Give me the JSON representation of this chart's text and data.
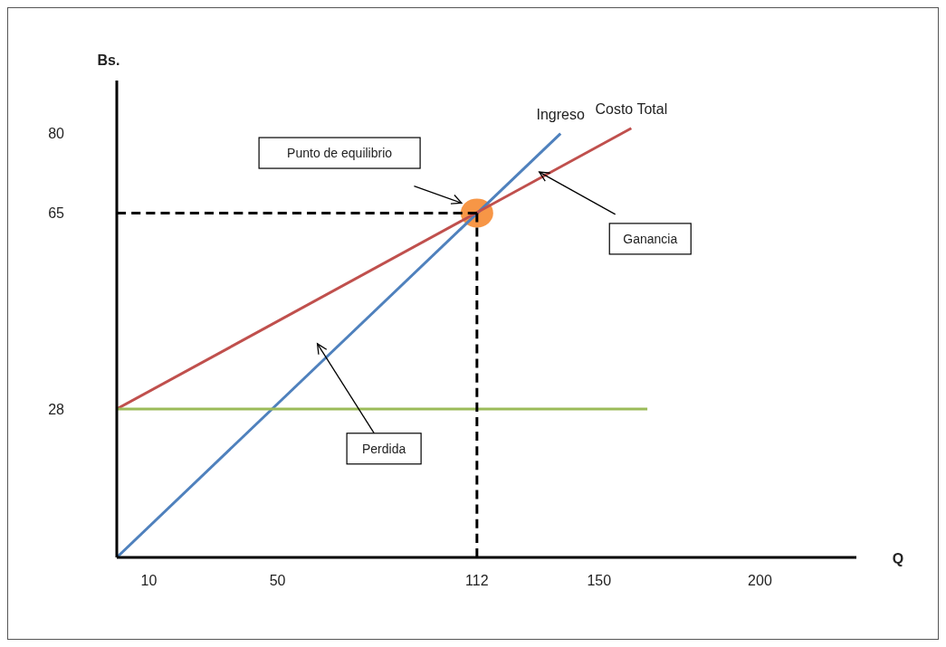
{
  "chart_data": {
    "type": "line",
    "xlabel": "Q",
    "ylabel": "Bs.",
    "xlim": [
      0,
      230
    ],
    "ylim": [
      0,
      90
    ],
    "xticks": [
      10,
      50,
      112,
      150,
      200
    ],
    "yticks": [
      28,
      65,
      80
    ],
    "grid": false,
    "legend": false,
    "marker": "none",
    "series": [
      {
        "name": "Ingreso",
        "color": "#4f81bd",
        "x": [
          0,
          138
        ],
        "values": [
          0,
          80
        ]
      },
      {
        "name": "Costo Total",
        "color": "#c0504d",
        "x": [
          0,
          160
        ],
        "values": [
          28,
          81
        ]
      },
      {
        "color": "#9bbb59",
        "x": [
          0,
          165
        ],
        "values": [
          28,
          28
        ]
      },
      {
        "color": "#000000",
        "x": [
          0,
          112
        ],
        "values": [
          65,
          65
        ],
        "line_style": "dashed"
      },
      {
        "color": "#000000",
        "x": [
          112,
          112
        ],
        "values": [
          0,
          65
        ],
        "line_style": "dashed"
      },
      {
        "type": "scatter",
        "color": "#f79646",
        "x": [
          112
        ],
        "values": [
          65
        ],
        "marker": "circle"
      }
    ],
    "annotations": [
      "Punto de equilibrio",
      "Ganancia",
      "Perdida"
    ]
  }
}
